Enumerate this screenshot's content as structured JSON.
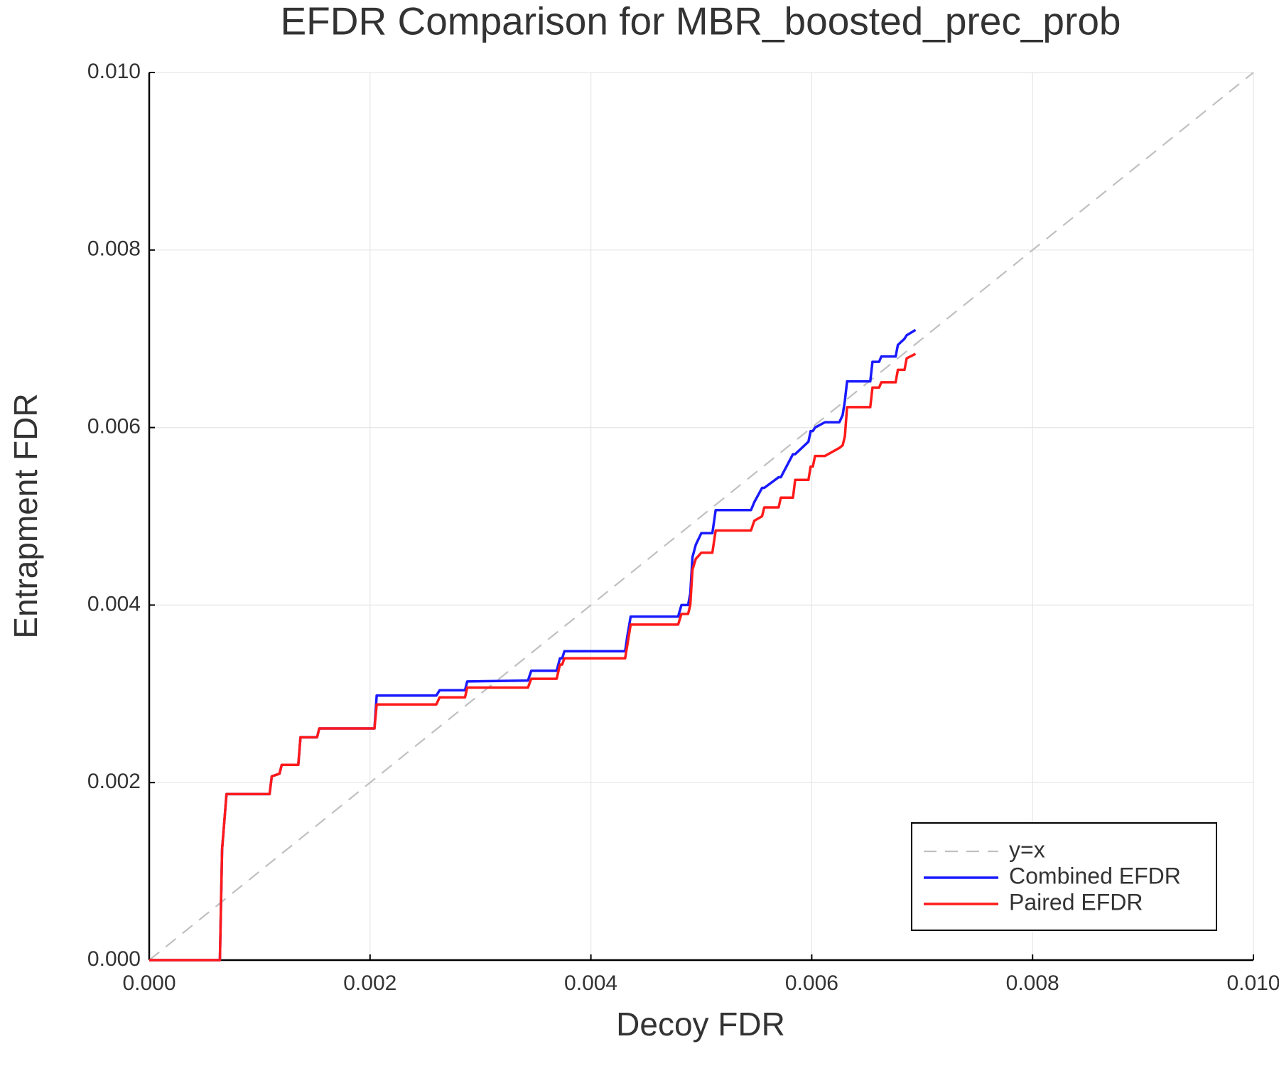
{
  "chart_data": {
    "type": "line",
    "title": "EFDR Comparison for MBR_boosted_prec_prob",
    "x_label": "Decoy FDR",
    "y_label": "Entrapment FDR",
    "xlim": [
      0,
      0.01
    ],
    "ylim": [
      0,
      0.01
    ],
    "xticks": [
      {
        "value": 0,
        "label": "0.000"
      },
      {
        "value": 0.002,
        "label": "0.002"
      },
      {
        "value": 0.004,
        "label": "0.004"
      },
      {
        "value": 0.006,
        "label": "0.006"
      },
      {
        "value": 0.008,
        "label": "0.008"
      },
      {
        "value": 0.01,
        "label": "0.010"
      }
    ],
    "yticks": [
      {
        "value": 0,
        "label": "0.000"
      },
      {
        "value": 0.002,
        "label": "0.002"
      },
      {
        "value": 0.004,
        "label": "0.004"
      },
      {
        "value": 0.006,
        "label": "0.006"
      },
      {
        "value": 0.008,
        "label": "0.008"
      },
      {
        "value": 0.01,
        "label": "0.010"
      }
    ],
    "grid": true,
    "legend": "bottom right",
    "x": [
      0,
      0.00064,
      0.00066,
      0.0007,
      0.00109,
      0.00111,
      0.00118,
      0.0012,
      0.00135,
      0.00137,
      0.00152,
      0.00154,
      0.00204,
      0.00206,
      0.0026,
      0.00263,
      0.00286,
      0.00288,
      0.00343,
      0.00346,
      0.00369,
      0.00372,
      0.00374,
      0.00376,
      0.00431,
      0.00433,
      0.00436,
      0.00479,
      0.00482,
      0.00488,
      0.0049,
      0.00492,
      0.00495,
      0.005,
      0.0051,
      0.00513,
      0.00545,
      0.00548,
      0.00555,
      0.00557,
      0.0057,
      0.00572,
      0.00583,
      0.00585,
      0.00597,
      0.00599,
      0.00601,
      0.00603,
      0.00612,
      0.00625,
      0.00628,
      0.0063,
      0.00632,
      0.00653,
      0.00655,
      0.00661,
      0.00663,
      0.00676,
      0.00678,
      0.00684,
      0.00686,
      0.00694
    ],
    "series": [
      {
        "name": "y=x",
        "color": "#c0c0c0",
        "dashed": true,
        "x": [
          0,
          0.01
        ],
        "values": [
          0,
          0.01
        ]
      },
      {
        "name": "Combined EFDR",
        "color": "#1a1aff",
        "values": [
          0,
          0,
          0.00125,
          0.00187,
          0.00187,
          0.00207,
          0.0021,
          0.0022,
          0.0022,
          0.00251,
          0.00251,
          0.00261,
          0.00261,
          0.00298,
          0.00298,
          0.00304,
          0.00304,
          0.00314,
          0.00315,
          0.00326,
          0.00326,
          0.0034,
          0.0034,
          0.00348,
          0.00348,
          0.00365,
          0.00387,
          0.00387,
          0.004,
          0.004,
          0.00413,
          0.00454,
          0.00468,
          0.00481,
          0.00481,
          0.00507,
          0.00507,
          0.00516,
          0.00532,
          0.00532,
          0.00544,
          0.00544,
          0.0057,
          0.0057,
          0.00584,
          0.00596,
          0.00596,
          0.006,
          0.00606,
          0.00606,
          0.00614,
          0.0063,
          0.00652,
          0.00652,
          0.00674,
          0.00674,
          0.0068,
          0.0068,
          0.00693,
          0.007,
          0.00704,
          0.0071
        ]
      },
      {
        "name": "Paired EFDR",
        "color": "#ff1a1a",
        "values": [
          0,
          0,
          0.00125,
          0.00187,
          0.00187,
          0.00207,
          0.0021,
          0.0022,
          0.0022,
          0.00251,
          0.00251,
          0.00261,
          0.00261,
          0.00288,
          0.00288,
          0.00296,
          0.00296,
          0.00307,
          0.00307,
          0.00317,
          0.00317,
          0.00333,
          0.00333,
          0.0034,
          0.0034,
          0.00355,
          0.00378,
          0.00378,
          0.0039,
          0.0039,
          0.004,
          0.0044,
          0.00452,
          0.00459,
          0.00459,
          0.00484,
          0.00484,
          0.00495,
          0.005,
          0.0051,
          0.0051,
          0.00521,
          0.00521,
          0.00541,
          0.00541,
          0.00556,
          0.00556,
          0.00568,
          0.00568,
          0.00577,
          0.0058,
          0.0059,
          0.00623,
          0.00623,
          0.00645,
          0.00645,
          0.00651,
          0.00651,
          0.00665,
          0.00665,
          0.00678,
          0.00683
        ]
      }
    ]
  }
}
